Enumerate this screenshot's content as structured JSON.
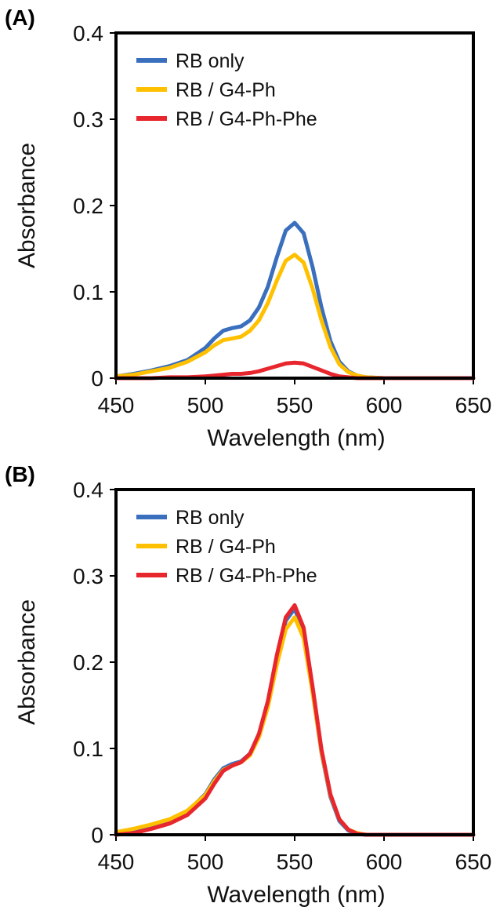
{
  "chart_data": [
    {
      "type": "line",
      "panel_label": "(A)",
      "xlabel": "Wavelength (nm)",
      "ylabel": "Absorbance",
      "xlim": [
        450,
        650
      ],
      "ylim": [
        0,
        0.4
      ],
      "xticks": [
        "450",
        "500",
        "550",
        "600",
        "650"
      ],
      "yticks": [
        "0",
        "0.1",
        "0.2",
        "0.3",
        "0.4"
      ],
      "legend_position": "top-left",
      "grid": false,
      "x": [
        450,
        460,
        470,
        480,
        490,
        500,
        505,
        510,
        515,
        520,
        525,
        530,
        535,
        540,
        545,
        550,
        555,
        560,
        565,
        570,
        575,
        580,
        585,
        590,
        600,
        610,
        620,
        630,
        640,
        650
      ],
      "series": [
        {
          "name": "RB only",
          "color": "#3a6fbd",
          "values": [
            0.002,
            0.005,
            0.009,
            0.014,
            0.021,
            0.035,
            0.046,
            0.055,
            0.058,
            0.06,
            0.067,
            0.082,
            0.106,
            0.14,
            0.171,
            0.18,
            0.168,
            0.129,
            0.082,
            0.043,
            0.019,
            0.008,
            0.003,
            0.001,
            0.0,
            0.0,
            0.0,
            0.0,
            0.0,
            0.0
          ]
        },
        {
          "name": "RB / G4-Ph",
          "color": "#ffc000",
          "values": [
            0.002,
            0.004,
            0.008,
            0.012,
            0.019,
            0.03,
            0.038,
            0.044,
            0.046,
            0.048,
            0.055,
            0.067,
            0.087,
            0.113,
            0.136,
            0.143,
            0.134,
            0.104,
            0.067,
            0.036,
            0.016,
            0.007,
            0.003,
            0.001,
            0.0,
            0.0,
            0.0,
            0.0,
            0.0,
            0.0
          ]
        },
        {
          "name": "RB / G4-Ph-Phe",
          "color": "#e8262d",
          "values": [
            0.0,
            0.0,
            0.0,
            0.001,
            0.001,
            0.002,
            0.003,
            0.004,
            0.005,
            0.005,
            0.006,
            0.008,
            0.011,
            0.014,
            0.017,
            0.018,
            0.017,
            0.013,
            0.009,
            0.005,
            0.002,
            0.001,
            0.0,
            0.0,
            0.0,
            0.0,
            0.0,
            0.0,
            0.0,
            0.0
          ]
        }
      ]
    },
    {
      "type": "line",
      "panel_label": "(B)",
      "xlabel": "Wavelength (nm)",
      "ylabel": "Absorbance",
      "xlim": [
        450,
        650
      ],
      "ylim": [
        0,
        0.4
      ],
      "xticks": [
        "450",
        "500",
        "550",
        "600",
        "650"
      ],
      "yticks": [
        "0",
        "0.1",
        "0.2",
        "0.3",
        "0.4"
      ],
      "legend_position": "top-left",
      "grid": false,
      "x": [
        450,
        460,
        470,
        480,
        490,
        500,
        505,
        510,
        515,
        520,
        525,
        530,
        535,
        540,
        545,
        550,
        555,
        560,
        565,
        570,
        575,
        580,
        585,
        590,
        600,
        610,
        620,
        630,
        640,
        650
      ],
      "series": [
        {
          "name": "RB only",
          "color": "#3a6fbd",
          "values": [
            0.002,
            0.006,
            0.011,
            0.017,
            0.027,
            0.047,
            0.064,
            0.077,
            0.082,
            0.085,
            0.094,
            0.116,
            0.152,
            0.204,
            0.248,
            0.262,
            0.235,
            0.167,
            0.095,
            0.044,
            0.016,
            0.005,
            0.001,
            0.0,
            0.0,
            0.0,
            0.0,
            0.0,
            0.0,
            0.0
          ]
        },
        {
          "name": "RB / G4-Ph",
          "color": "#ffc000",
          "values": [
            0.003,
            0.007,
            0.012,
            0.018,
            0.028,
            0.046,
            0.062,
            0.075,
            0.08,
            0.084,
            0.092,
            0.113,
            0.148,
            0.197,
            0.238,
            0.252,
            0.228,
            0.165,
            0.096,
            0.046,
            0.018,
            0.006,
            0.002,
            0.0,
            0.0,
            0.0,
            0.0,
            0.0,
            0.0,
            0.0
          ]
        },
        {
          "name": "RB / G4-Ph-Phe",
          "color": "#e8262d",
          "values": [
            0.0,
            0.002,
            0.007,
            0.013,
            0.023,
            0.042,
            0.059,
            0.074,
            0.08,
            0.084,
            0.094,
            0.117,
            0.155,
            0.208,
            0.252,
            0.266,
            0.24,
            0.172,
            0.099,
            0.047,
            0.018,
            0.006,
            0.001,
            0.0,
            0.0,
            0.0,
            0.0,
            0.0,
            0.0,
            0.0
          ]
        }
      ]
    }
  ]
}
